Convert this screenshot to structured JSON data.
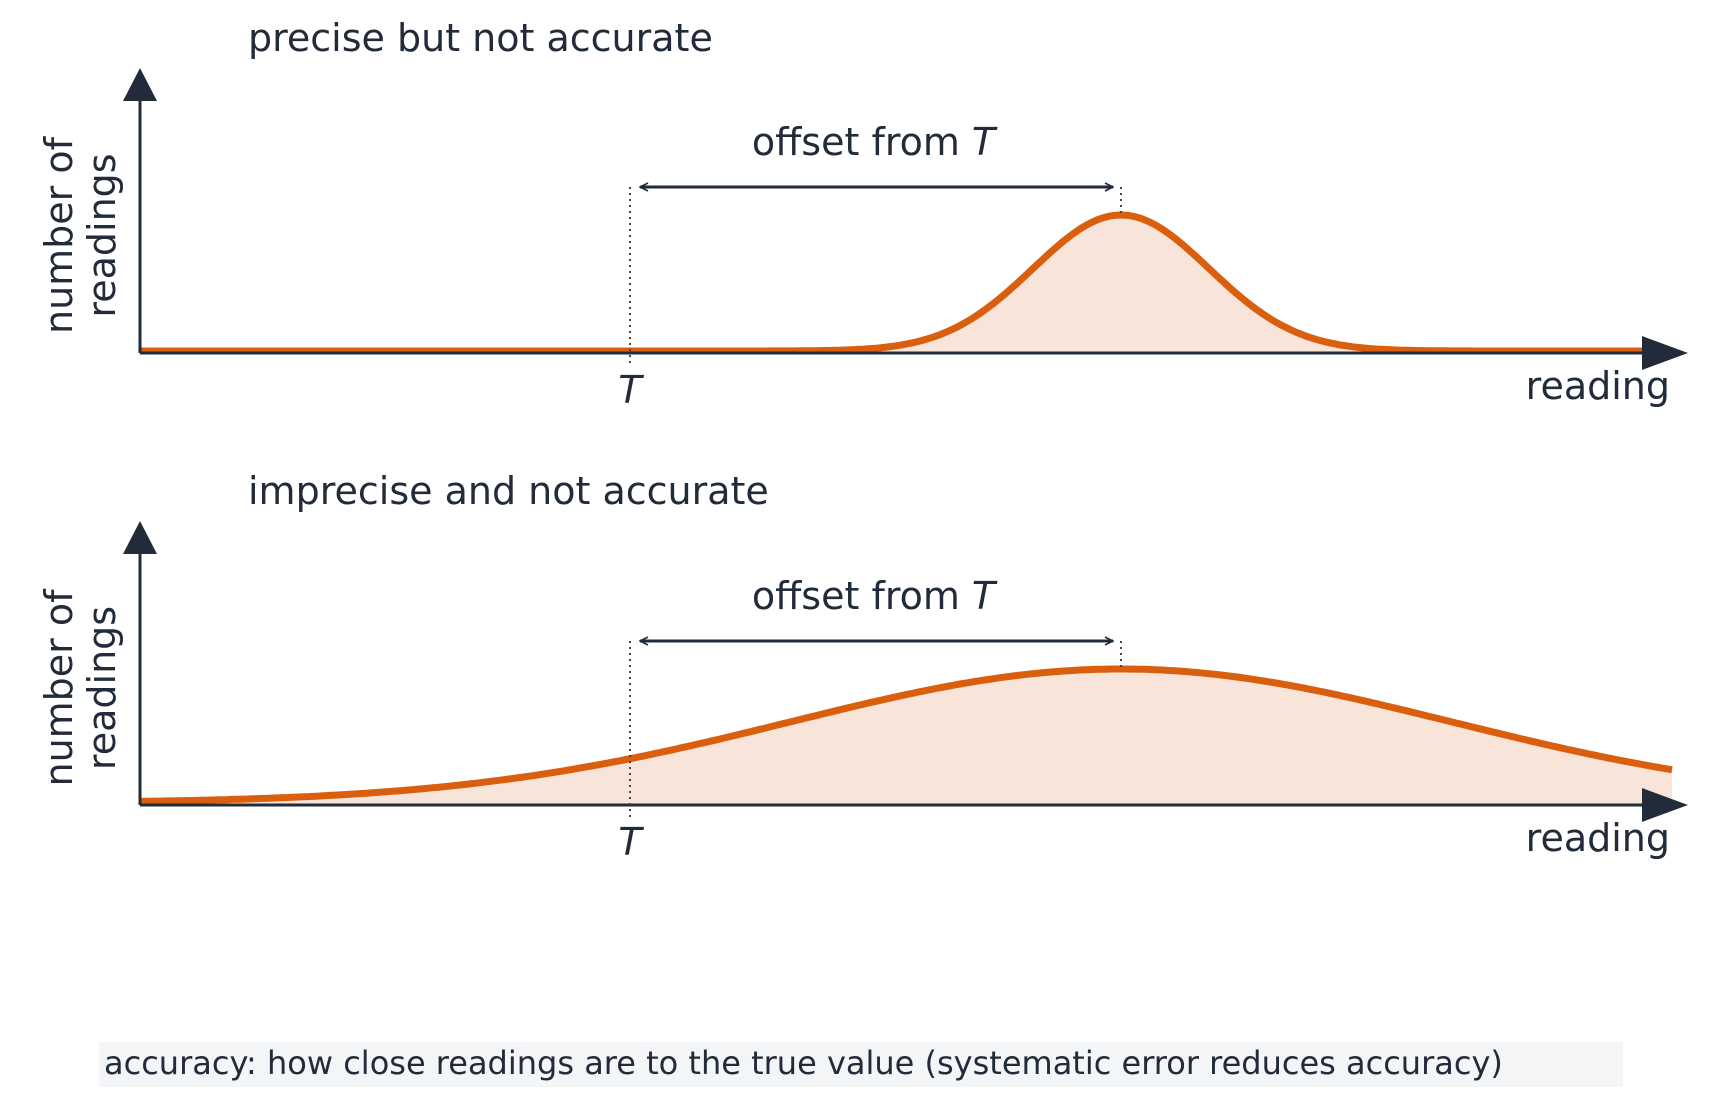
{
  "panels": [
    {
      "title": "precise but not accurate",
      "y_label": [
        "number of",
        "readings"
      ],
      "x_label": "reading",
      "true_value": "T",
      "offset_label": {
        "text": "offset from",
        "symbol": "T"
      }
    },
    {
      "title": "imprecise and not accurate",
      "y_label": [
        "number of",
        "readings"
      ],
      "x_label": "reading",
      "true_value": "T",
      "offset_label": {
        "text": "offset from",
        "symbol": "T"
      }
    }
  ],
  "caption": "accuracy: how close readings are to the true value (systematic error reduces accuracy)"
}
